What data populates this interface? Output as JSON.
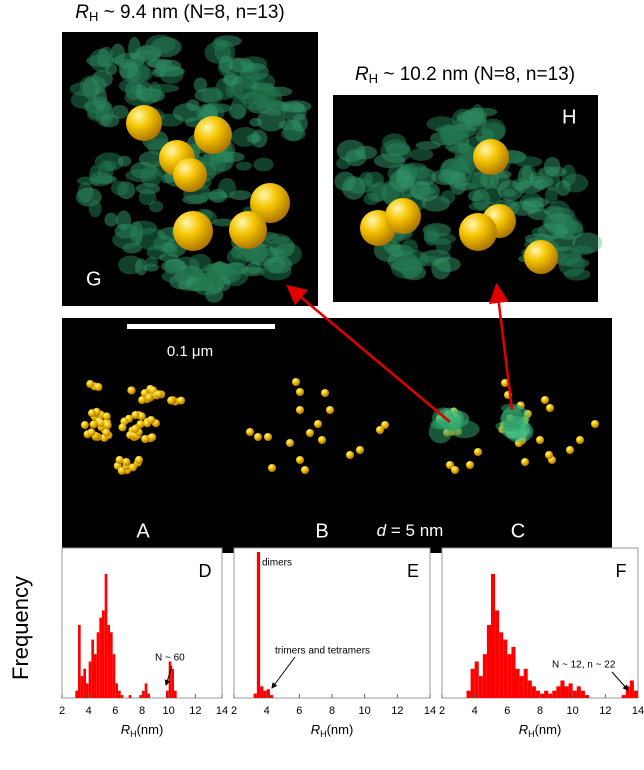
{
  "figure": {
    "y_label": "Frequency",
    "scale_bar": "0.1 μm",
    "spacing_label": [
      "d",
      " = 5 nm"
    ]
  },
  "panels": {
    "G": {
      "letter": "G",
      "title": [
        "R",
        "H",
        " ~ 9.4 nm (N=8, n=13)"
      ]
    },
    "H": {
      "letter": "H",
      "title": [
        "R",
        "H",
        " ~ 10.2 nm (N=8, n=13)"
      ]
    },
    "A": {
      "letter": "A"
    },
    "B": {
      "letter": "B"
    },
    "C": {
      "letter": "C"
    }
  },
  "chart_data": [
    {
      "type": "histogram",
      "panel": "D",
      "color": "#ff0000",
      "x_label": [
        "R",
        "H",
        "(nm)"
      ],
      "xlim": [
        2,
        14
      ],
      "xticks": [
        2,
        4,
        6,
        8,
        10,
        12,
        14
      ],
      "ylim": [
        0,
        100
      ],
      "bins": [
        3,
        3.2,
        3.4,
        3.6,
        3.8,
        4,
        4.2,
        4.4,
        4.6,
        4.8,
        5,
        5.2,
        5.4,
        5.6,
        5.8,
        6,
        6.2,
        6.4,
        6.6,
        6.8,
        7,
        7.2,
        7.4,
        7.6,
        7.8,
        8,
        8.2,
        8.4,
        8.6,
        8.8,
        9,
        9.2,
        9.4,
        9.6,
        9.8,
        10,
        10.2,
        10.4,
        10.6
      ],
      "values": [
        5,
        50,
        15,
        20,
        10,
        25,
        40,
        30,
        45,
        55,
        60,
        85,
        50,
        45,
        30,
        10,
        5,
        2,
        0,
        0,
        2,
        0,
        0,
        0,
        2,
        5,
        10,
        3,
        0,
        0,
        0,
        0,
        0,
        0,
        5,
        25,
        20,
        5
      ],
      "annotations": [
        "N ~ 60"
      ]
    },
    {
      "type": "histogram",
      "panel": "E",
      "color": "#ff0000",
      "x_label": [
        "R",
        "H",
        "(nm)"
      ],
      "xlim": [
        2,
        14
      ],
      "xticks": [
        2,
        4,
        6,
        8,
        10,
        12,
        14
      ],
      "ylim": [
        0,
        100
      ],
      "bins": [
        3.2,
        3.4,
        3.6,
        3.8,
        4,
        4.2,
        4.4
      ],
      "values": [
        3,
        100,
        8,
        5,
        6,
        2
      ],
      "annotations": [
        "dimers",
        "trimers and tetramers"
      ]
    },
    {
      "type": "histogram",
      "panel": "F",
      "color": "#ff0000",
      "x_label": [
        "R",
        "H",
        "(nm)"
      ],
      "xlim": [
        2,
        14
      ],
      "xticks": [
        2,
        4,
        6,
        8,
        10,
        12,
        14
      ],
      "ylim": [
        0,
        100
      ],
      "bins": [
        3.5,
        3.75,
        4,
        4.25,
        4.5,
        4.75,
        5,
        5.25,
        5.5,
        5.75,
        6,
        6.25,
        6.5,
        6.75,
        7,
        7.25,
        7.5,
        7.75,
        8,
        8.25,
        8.5,
        8.75,
        9,
        9.25,
        9.5,
        9.75,
        10,
        10.25,
        10.5,
        10.75,
        11,
        11.25,
        11.5,
        11.75,
        12,
        12.25,
        12.5,
        12.75,
        13,
        13.25,
        13.5,
        13.75,
        14
      ],
      "values": [
        5,
        20,
        25,
        15,
        30,
        50,
        85,
        60,
        45,
        40,
        30,
        35,
        20,
        15,
        20,
        12,
        8,
        5,
        3,
        5,
        3,
        5,
        8,
        12,
        8,
        10,
        5,
        8,
        5,
        2,
        0,
        0,
        0,
        0,
        0,
        0,
        0,
        0,
        2,
        8,
        12,
        5
      ],
      "annotations": [
        "N ~ 12, n ~ 22"
      ]
    }
  ]
}
